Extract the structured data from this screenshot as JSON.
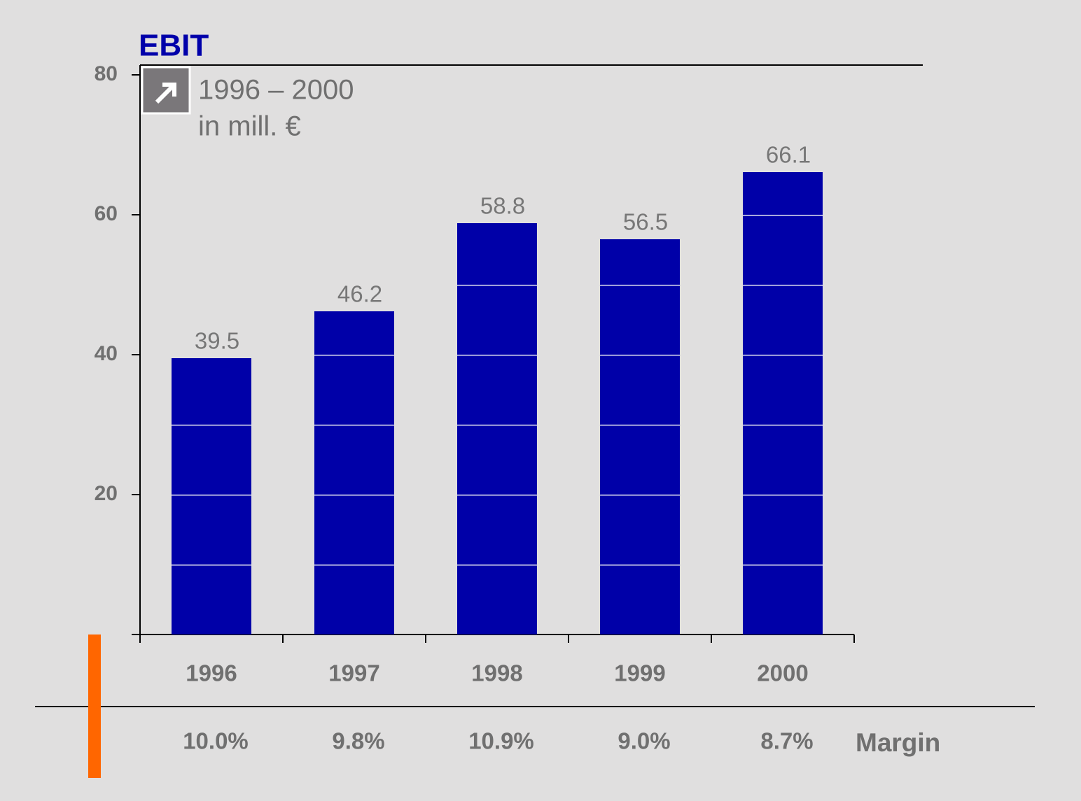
{
  "chart_data": {
    "type": "bar",
    "title": "EBIT",
    "subtitle": [
      "1996 – 2000",
      "in mill. €"
    ],
    "categories": [
      "1996",
      "1997",
      "1998",
      "1999",
      "2000"
    ],
    "values": [
      39.5,
      46.2,
      58.8,
      56.5,
      66.1
    ],
    "color": "#0000a8",
    "ylim": [
      0,
      80
    ],
    "yticks": [
      20,
      40,
      60,
      80
    ],
    "margin_label": "Margin",
    "margins": [
      "10.0%",
      "9.8%",
      "10.9%",
      "9.0%",
      "8.7%"
    ]
  }
}
